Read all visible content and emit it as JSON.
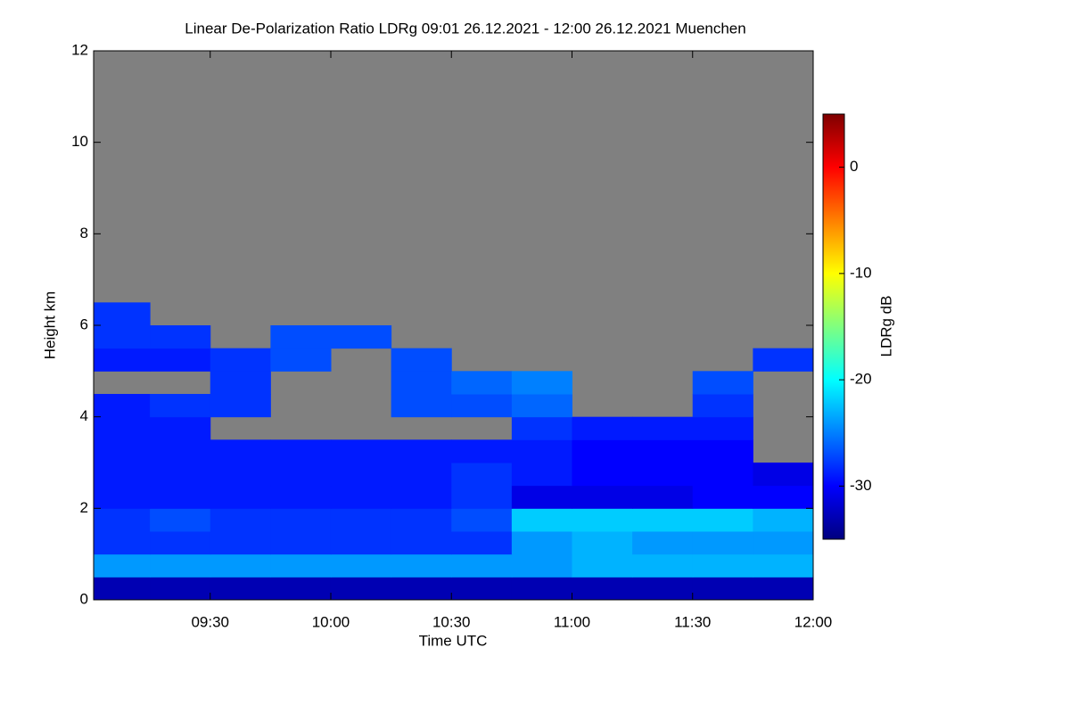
{
  "chart_data": {
    "type": "heatmap",
    "title": "Linear De-Polarization Ratio LDRg   09:01 26.12.2021 - 12:00 26.12.2021 Muenchen",
    "x_label": "Time UTC",
    "y_label": "Height km",
    "colorbar_label": "LDRg dB",
    "colormap": "jet",
    "xlim": [
      541,
      720
    ],
    "xticks": [
      {
        "value": 570,
        "label": "09:30"
      },
      {
        "value": 600,
        "label": "10:00"
      },
      {
        "value": 630,
        "label": "10:30"
      },
      {
        "value": 660,
        "label": "11:00"
      },
      {
        "value": 690,
        "label": "11:30"
      },
      {
        "value": 720,
        "label": "12:00"
      }
    ],
    "ylim": [
      0,
      12
    ],
    "yticks": [
      0,
      2,
      4,
      6,
      8,
      10,
      12
    ],
    "clim": [
      -35,
      5
    ],
    "cticks": [
      -30,
      -20,
      -10,
      0
    ],
    "xbins": [
      541,
      555,
      570,
      585,
      600,
      615,
      630,
      645,
      660,
      675,
      690,
      705,
      720
    ],
    "ybins": [
      0,
      0.5,
      1,
      1.5,
      2,
      2.5,
      3,
      3.5,
      4,
      4.5,
      5,
      5.5,
      6,
      6.5
    ],
    "z": [
      [
        -33,
        -33,
        -33,
        -33,
        -33,
        -33,
        -33,
        -33,
        -33,
        -33,
        -33,
        -33
      ],
      [
        -24,
        -24,
        -24,
        -24,
        -24,
        -24,
        -24,
        -24,
        -23,
        -23,
        -23,
        -23
      ],
      [
        -28,
        -28,
        -28,
        -28,
        -28,
        -28,
        -28,
        -24,
        -23,
        -24,
        -24,
        -24
      ],
      [
        -28,
        -27,
        -28,
        -28,
        -28,
        -28,
        -27,
        -22,
        -22,
        -22,
        -22,
        -23
      ],
      [
        -29,
        -29,
        -29,
        -29,
        -29,
        -29,
        -28,
        -31,
        -31,
        -31,
        -30,
        -30
      ],
      [
        -29,
        -29,
        -29,
        -29,
        -29,
        -29,
        -28,
        -29,
        -30,
        -30,
        -30,
        -31
      ],
      [
        -29,
        -29,
        -29,
        -29,
        -29,
        -29,
        -29,
        -29,
        -30,
        -30,
        -30,
        null
      ],
      [
        -29,
        -29,
        null,
        null,
        null,
        null,
        null,
        -28,
        -29,
        -29,
        -29,
        null
      ],
      [
        -29,
        -28,
        -28,
        null,
        null,
        -27,
        -27,
        -26,
        null,
        null,
        -28,
        null
      ],
      [
        null,
        null,
        -28,
        null,
        null,
        -27,
        -26,
        -25,
        null,
        null,
        -27,
        null
      ],
      [
        -29,
        -29,
        -28,
        -27,
        null,
        -27,
        null,
        null,
        null,
        null,
        null,
        -28
      ],
      [
        -28,
        -28,
        null,
        -27,
        -27,
        null,
        null,
        null,
        null,
        null,
        null,
        null
      ],
      [
        -28,
        null,
        null,
        null,
        null,
        null,
        null,
        null,
        null,
        null,
        null,
        null
      ]
    ]
  }
}
